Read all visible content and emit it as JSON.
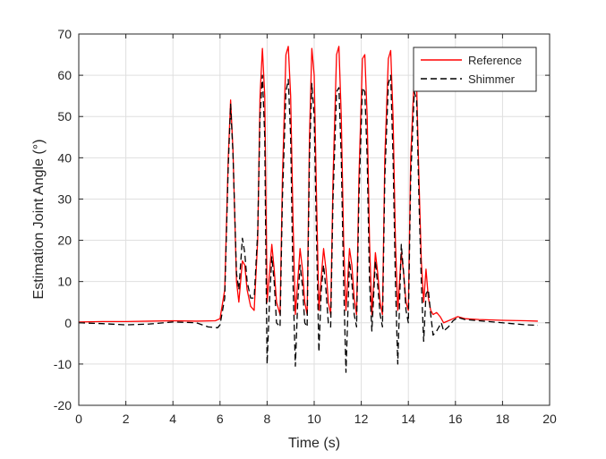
{
  "chart_data": {
    "type": "line",
    "xlabel": "Time (s)",
    "ylabel": "Estimation Joint Angle (°)",
    "xlim": [
      0,
      20
    ],
    "ylim": [
      -20,
      70
    ],
    "xticks": [
      0,
      2,
      4,
      6,
      8,
      10,
      12,
      14,
      16,
      18,
      20
    ],
    "yticks": [
      -20,
      -10,
      0,
      10,
      20,
      30,
      40,
      50,
      60,
      70
    ],
    "xtick_labels": [
      "0",
      "2",
      "4",
      "6",
      "8",
      "10",
      "12",
      "14",
      "16",
      "18",
      "20"
    ],
    "ytick_labels": [
      "-20",
      "-10",
      "0",
      "10",
      "20",
      "30",
      "40",
      "50",
      "60",
      "70"
    ],
    "grid": true,
    "legend_position": "top-right",
    "series": [
      {
        "name": "Reference",
        "color": "#ff0000",
        "style": "solid",
        "points": [
          [
            0,
            0.2
          ],
          [
            1,
            0.3
          ],
          [
            2,
            0.3
          ],
          [
            3,
            0.4
          ],
          [
            4,
            0.5
          ],
          [
            5,
            0.4
          ],
          [
            5.8,
            0.5
          ],
          [
            6.0,
            1
          ],
          [
            6.2,
            8
          ],
          [
            6.35,
            40
          ],
          [
            6.45,
            54
          ],
          [
            6.55,
            42
          ],
          [
            6.7,
            10
          ],
          [
            6.8,
            5
          ],
          [
            6.95,
            15
          ],
          [
            7.05,
            14
          ],
          [
            7.15,
            8
          ],
          [
            7.3,
            4
          ],
          [
            7.45,
            3
          ],
          [
            7.6,
            20
          ],
          [
            7.7,
            55
          ],
          [
            7.8,
            66.5
          ],
          [
            7.9,
            55
          ],
          [
            7.95,
            30
          ],
          [
            8.0,
            5
          ],
          [
            8.1,
            12
          ],
          [
            8.2,
            19
          ],
          [
            8.3,
            13
          ],
          [
            8.4,
            5
          ],
          [
            8.55,
            2
          ],
          [
            8.65,
            35
          ],
          [
            8.8,
            65
          ],
          [
            8.9,
            67
          ],
          [
            9.0,
            55
          ],
          [
            9.1,
            25
          ],
          [
            9.2,
            2
          ],
          [
            9.3,
            10
          ],
          [
            9.4,
            18
          ],
          [
            9.5,
            13
          ],
          [
            9.6,
            5
          ],
          [
            9.7,
            2
          ],
          [
            9.8,
            45
          ],
          [
            9.9,
            66.5
          ],
          [
            10.0,
            60
          ],
          [
            10.1,
            30
          ],
          [
            10.2,
            3
          ],
          [
            10.3,
            11
          ],
          [
            10.4,
            18
          ],
          [
            10.5,
            13
          ],
          [
            10.6,
            5
          ],
          [
            10.7,
            2
          ],
          [
            10.8,
            35
          ],
          [
            10.95,
            65
          ],
          [
            11.05,
            67
          ],
          [
            11.15,
            50
          ],
          [
            11.25,
            20
          ],
          [
            11.35,
            3
          ],
          [
            11.5,
            18
          ],
          [
            11.6,
            14
          ],
          [
            11.7,
            6
          ],
          [
            11.8,
            2
          ],
          [
            11.9,
            35
          ],
          [
            12.05,
            64
          ],
          [
            12.15,
            65
          ],
          [
            12.25,
            50
          ],
          [
            12.35,
            20
          ],
          [
            12.45,
            2
          ],
          [
            12.6,
            17
          ],
          [
            12.7,
            12
          ],
          [
            12.8,
            5
          ],
          [
            12.9,
            2
          ],
          [
            13.0,
            40
          ],
          [
            13.15,
            64
          ],
          [
            13.25,
            66
          ],
          [
            13.35,
            50
          ],
          [
            13.45,
            20
          ],
          [
            13.55,
            3
          ],
          [
            13.7,
            17
          ],
          [
            13.8,
            12
          ],
          [
            13.9,
            5
          ],
          [
            14.0,
            3
          ],
          [
            14.1,
            40
          ],
          [
            14.25,
            60
          ],
          [
            14.35,
            58
          ],
          [
            14.45,
            35
          ],
          [
            14.55,
            15
          ],
          [
            14.65,
            5
          ],
          [
            14.75,
            13
          ],
          [
            14.85,
            6
          ],
          [
            14.95,
            3
          ],
          [
            15.05,
            2
          ],
          [
            15.2,
            2.5
          ],
          [
            15.35,
            1.5
          ],
          [
            15.5,
            0
          ],
          [
            15.7,
            0.5
          ],
          [
            15.9,
            1
          ],
          [
            16.1,
            1.5
          ],
          [
            16.4,
            1
          ],
          [
            17,
            0.8
          ],
          [
            18,
            0.6
          ],
          [
            19,
            0.5
          ],
          [
            19.5,
            0.4
          ]
        ]
      },
      {
        "name": "Shimmer",
        "color": "#000000",
        "style": "dashed",
        "points": [
          [
            0,
            0
          ],
          [
            1,
            -0.2
          ],
          [
            2,
            -0.5
          ],
          [
            3,
            -0.3
          ],
          [
            4,
            0.2
          ],
          [
            5,
            0
          ],
          [
            5.5,
            -1
          ],
          [
            5.9,
            -1.2
          ],
          [
            6.0,
            -0.5
          ],
          [
            6.2,
            6
          ],
          [
            6.35,
            38
          ],
          [
            6.45,
            53
          ],
          [
            6.55,
            41
          ],
          [
            6.7,
            12
          ],
          [
            6.8,
            8
          ],
          [
            6.95,
            20.5
          ],
          [
            7.05,
            17
          ],
          [
            7.15,
            10
          ],
          [
            7.3,
            6
          ],
          [
            7.45,
            6
          ],
          [
            7.6,
            22
          ],
          [
            7.7,
            50
          ],
          [
            7.8,
            60
          ],
          [
            7.9,
            45
          ],
          [
            7.95,
            15
          ],
          [
            8.0,
            -10
          ],
          [
            8.1,
            5
          ],
          [
            8.2,
            16
          ],
          [
            8.3,
            10
          ],
          [
            8.4,
            0
          ],
          [
            8.55,
            -1
          ],
          [
            8.65,
            30
          ],
          [
            8.8,
            56
          ],
          [
            8.9,
            59
          ],
          [
            9.0,
            45
          ],
          [
            9.1,
            10
          ],
          [
            9.2,
            -10.5
          ],
          [
            9.3,
            5
          ],
          [
            9.4,
            14
          ],
          [
            9.5,
            9
          ],
          [
            9.6,
            0
          ],
          [
            9.7,
            -1
          ],
          [
            9.8,
            40
          ],
          [
            9.9,
            58
          ],
          [
            10.0,
            50
          ],
          [
            10.1,
            20
          ],
          [
            10.2,
            -7
          ],
          [
            10.3,
            8
          ],
          [
            10.4,
            14
          ],
          [
            10.5,
            8
          ],
          [
            10.6,
            0
          ],
          [
            10.7,
            -1
          ],
          [
            10.8,
            30
          ],
          [
            10.95,
            56
          ],
          [
            11.05,
            57
          ],
          [
            11.15,
            40
          ],
          [
            11.25,
            10
          ],
          [
            11.35,
            -12
          ],
          [
            11.5,
            15
          ],
          [
            11.6,
            10
          ],
          [
            11.7,
            2
          ],
          [
            11.8,
            -1
          ],
          [
            11.9,
            30
          ],
          [
            12.05,
            57
          ],
          [
            12.15,
            56
          ],
          [
            12.25,
            40
          ],
          [
            12.35,
            10
          ],
          [
            12.45,
            -2
          ],
          [
            12.6,
            15
          ],
          [
            12.7,
            9
          ],
          [
            12.8,
            2
          ],
          [
            12.9,
            -1
          ],
          [
            13.0,
            35
          ],
          [
            13.15,
            58
          ],
          [
            13.25,
            60
          ],
          [
            13.35,
            40
          ],
          [
            13.45,
            10
          ],
          [
            13.55,
            -10
          ],
          [
            13.7,
            19
          ],
          [
            13.8,
            12
          ],
          [
            13.9,
            3
          ],
          [
            14.0,
            0
          ],
          [
            14.1,
            35
          ],
          [
            14.25,
            56
          ],
          [
            14.35,
            54
          ],
          [
            14.45,
            30
          ],
          [
            14.55,
            10
          ],
          [
            14.65,
            -4.5
          ],
          [
            14.75,
            7
          ],
          [
            14.85,
            8
          ],
          [
            14.95,
            2
          ],
          [
            15.05,
            -3
          ],
          [
            15.2,
            -2
          ],
          [
            15.4,
            0
          ],
          [
            15.5,
            -2
          ],
          [
            15.7,
            -1
          ],
          [
            15.9,
            0.5
          ],
          [
            16.1,
            1.3
          ],
          [
            16.4,
            0.8
          ],
          [
            17,
            0.5
          ],
          [
            18,
            0
          ],
          [
            19,
            -0.5
          ],
          [
            19.5,
            -0.6
          ]
        ]
      }
    ]
  }
}
